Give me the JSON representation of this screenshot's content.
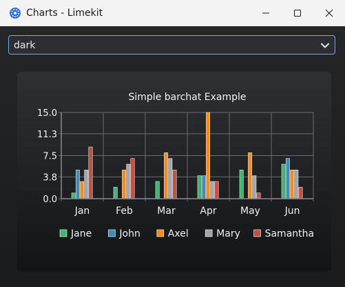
{
  "window": {
    "title": "Charts - Limekit",
    "app_icon": "limekit-logo-icon",
    "controls": [
      "minimize-icon",
      "maximize-icon",
      "close-icon"
    ]
  },
  "theme_select": {
    "value": "dark"
  },
  "colors": {
    "titlebar_bg": "#f3f3f3",
    "content_bg": "#1e1f22",
    "combo_border": "#7aa6d9",
    "grid": "#6a6c71"
  },
  "chart_data": {
    "type": "bar",
    "title": "Simple barchat Example",
    "categories": [
      "Jan",
      "Feb",
      "Mar",
      "Apr",
      "May",
      "Jun"
    ],
    "ylim": [
      0,
      15
    ],
    "yticks": [
      "0.0",
      "3.8",
      "7.5",
      "11.3",
      "15.0"
    ],
    "grid": true,
    "legend_position": "bottom",
    "series": [
      {
        "name": "Jane",
        "color": "#3fb56e",
        "values": [
          1,
          2,
          3,
          4,
          5,
          6
        ]
      },
      {
        "name": "John",
        "color": "#3d8db6",
        "values": [
          5,
          0,
          0,
          4,
          0,
          7
        ]
      },
      {
        "name": "Axel",
        "color": "#f28c1c",
        "values": [
          3,
          5,
          8,
          15,
          8,
          5
        ]
      },
      {
        "name": "Mary",
        "color": "#a4a5aa",
        "values": [
          5,
          6,
          7,
          3,
          4,
          5
        ]
      },
      {
        "name": "Samantha",
        "color": "#c4513f",
        "values": [
          9,
          7,
          5,
          3,
          1,
          2
        ]
      }
    ]
  }
}
